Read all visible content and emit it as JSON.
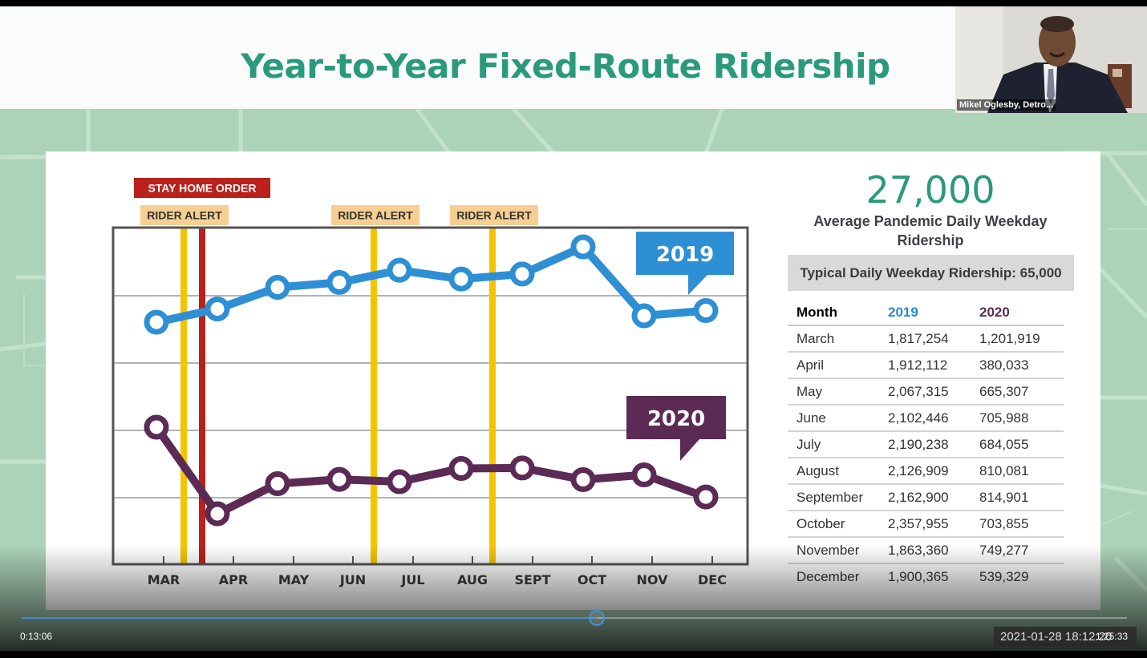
{
  "slide": {
    "title": "Year-to-Year Fixed-Route Ridership",
    "big_number": "27,000",
    "big_number_label": "Average Pandemic Daily Weekday Ridership",
    "typical_box": "Typical Daily Weekday Ridership: 65,000",
    "table": {
      "headers": [
        "Month",
        "2019",
        "2020"
      ],
      "rows": [
        [
          "March",
          "1,817,254",
          "1,201,919"
        ],
        [
          "April",
          "1,912,112",
          "380,033"
        ],
        [
          "May",
          "2,067,315",
          "665,307"
        ],
        [
          "June",
          "2,102,446",
          "705,988"
        ],
        [
          "July",
          "2,190,238",
          "684,055"
        ],
        [
          "August",
          "2,126,909",
          "810,081"
        ],
        [
          "September",
          "2,162,900",
          "814,901"
        ],
        [
          "October",
          "2,357,955",
          "703,855"
        ],
        [
          "November",
          "1,863,360",
          "749,277"
        ],
        [
          "December",
          "1,900,365",
          "539,329"
        ]
      ]
    }
  },
  "chart_data": {
    "type": "line",
    "title": "",
    "xlabel": "",
    "ylabel": "",
    "categories": [
      "MAR",
      "APR",
      "MAY",
      "JUN",
      "JUL",
      "AUG",
      "SEPT",
      "OCT",
      "NOV",
      "DEC"
    ],
    "series": [
      {
        "name": "2019",
        "color": "#2e8fd4",
        "values": [
          1817254,
          1912112,
          2067315,
          2102446,
          2190238,
          2126909,
          2162900,
          2357955,
          1863360,
          1900365
        ]
      },
      {
        "name": "2020",
        "color": "#5b2b55",
        "values": [
          1201919,
          380033,
          665307,
          705988,
          684055,
          810081,
          814901,
          703855,
          749277,
          539329
        ]
      }
    ],
    "grid": true,
    "events": [
      {
        "label": "STAY HOME ORDER",
        "color": "#b8211c",
        "position": "between MAR and APR"
      },
      {
        "label": "RIDER ALERT",
        "color": "#f5c400",
        "position": "between MAR and APR"
      },
      {
        "label": "RIDER ALERT",
        "color": "#f5c400",
        "position": "JUN"
      },
      {
        "label": "RIDER ALERT",
        "color": "#f5c400",
        "position": "between AUG and SEPT"
      }
    ]
  },
  "webcam": {
    "name_label": "Mikel Oglesby, Detro..."
  },
  "player": {
    "current_time": "0:13:06",
    "total_time": "1:25:33",
    "progress": 0.52,
    "timestamp_overlay": "2021-01-28  18:12:20"
  }
}
